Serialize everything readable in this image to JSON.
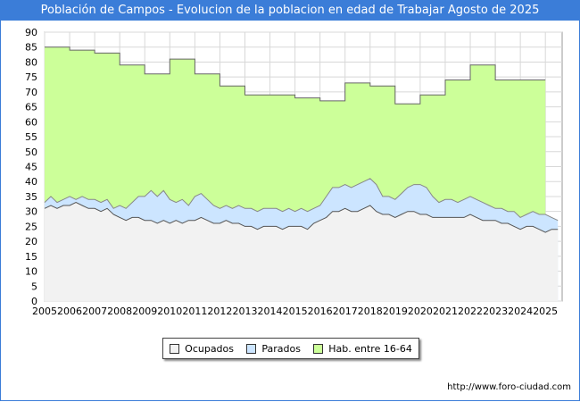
{
  "chart_data": {
    "type": "area",
    "title": "Población de Campos - Evolucion de la poblacion en edad de Trabajar Agosto de 2025",
    "xlabel": "",
    "ylabel": "",
    "ylim": [
      0,
      90
    ],
    "xlim": [
      2005,
      2025.67
    ],
    "yticks": [
      "0",
      "5",
      "10",
      "15",
      "20",
      "25",
      "30",
      "35",
      "40",
      "45",
      "50",
      "55",
      "60",
      "65",
      "70",
      "75",
      "80",
      "85",
      "90"
    ],
    "xticks": [
      "2005",
      "2006",
      "2007",
      "2008",
      "2009",
      "2010",
      "2011",
      "2012",
      "2013",
      "2014",
      "2015",
      "2016",
      "2017",
      "2018",
      "2019",
      "2020",
      "2021",
      "2022",
      "2023",
      "2024",
      "2025"
    ],
    "grid": true,
    "legend_position": "bottom",
    "series": [
      {
        "name": "Hab. entre 16-64",
        "color": "#ccff99",
        "stroke": "#666666",
        "step": true,
        "x": [
          2005,
          2006,
          2007,
          2008,
          2009,
          2010,
          2011,
          2012,
          2013,
          2014,
          2015,
          2016,
          2017,
          2018,
          2019,
          2020,
          2021,
          2022,
          2023,
          2024
        ],
        "values": [
          85,
          84,
          83,
          79,
          76,
          81,
          76,
          72,
          69,
          69,
          68,
          67,
          73,
          72,
          66,
          69,
          74,
          79,
          74,
          74
        ]
      },
      {
        "name": "Parados",
        "color": "#cce5ff",
        "stroke": "#888888",
        "x": [
          2005,
          2005.25,
          2005.5,
          2005.75,
          2006,
          2006.25,
          2006.5,
          2006.75,
          2007,
          2007.25,
          2007.5,
          2007.75,
          2008,
          2008.25,
          2008.5,
          2008.75,
          2009,
          2009.25,
          2009.5,
          2009.75,
          2010,
          2010.25,
          2010.5,
          2010.75,
          2011,
          2011.25,
          2011.5,
          2011.75,
          2012,
          2012.25,
          2012.5,
          2012.75,
          2013,
          2013.25,
          2013.5,
          2013.75,
          2014,
          2014.25,
          2014.5,
          2014.75,
          2015,
          2015.25,
          2015.5,
          2015.75,
          2016,
          2016.25,
          2016.5,
          2016.75,
          2017,
          2017.25,
          2017.5,
          2017.75,
          2018,
          2018.25,
          2018.5,
          2018.75,
          2019,
          2019.25,
          2019.5,
          2019.75,
          2020,
          2020.25,
          2020.5,
          2020.75,
          2021,
          2021.25,
          2021.5,
          2021.75,
          2022,
          2022.25,
          2022.5,
          2022.75,
          2023,
          2023.25,
          2023.5,
          2023.75,
          2024,
          2024.25,
          2024.5,
          2024.75,
          2025,
          2025.25,
          2025.5
        ],
        "values": [
          33,
          35,
          33,
          34,
          35,
          34,
          35,
          34,
          34,
          33,
          34,
          31,
          32,
          31,
          33,
          35,
          35,
          37,
          35,
          37,
          34,
          33,
          34,
          32,
          35,
          36,
          34,
          32,
          31,
          32,
          31,
          32,
          31,
          31,
          30,
          31,
          31,
          31,
          30,
          31,
          30,
          31,
          30,
          31,
          32,
          35,
          38,
          38,
          39,
          38,
          39,
          40,
          41,
          39,
          35,
          35,
          34,
          36,
          38,
          39,
          39,
          38,
          35,
          33,
          34,
          34,
          33,
          34,
          35,
          34,
          33,
          32,
          31,
          31,
          30,
          30,
          28,
          29,
          30,
          29,
          29,
          28,
          27
        ]
      },
      {
        "name": "Ocupados",
        "color": "#f2f2f2",
        "stroke": "#555555",
        "x": [
          2005,
          2005.25,
          2005.5,
          2005.75,
          2006,
          2006.25,
          2006.5,
          2006.75,
          2007,
          2007.25,
          2007.5,
          2007.75,
          2008,
          2008.25,
          2008.5,
          2008.75,
          2009,
          2009.25,
          2009.5,
          2009.75,
          2010,
          2010.25,
          2010.5,
          2010.75,
          2011,
          2011.25,
          2011.5,
          2011.75,
          2012,
          2012.25,
          2012.5,
          2012.75,
          2013,
          2013.25,
          2013.5,
          2013.75,
          2014,
          2014.25,
          2014.5,
          2014.75,
          2015,
          2015.25,
          2015.5,
          2015.75,
          2016,
          2016.25,
          2016.5,
          2016.75,
          2017,
          2017.25,
          2017.5,
          2017.75,
          2018,
          2018.25,
          2018.5,
          2018.75,
          2019,
          2019.25,
          2019.5,
          2019.75,
          2020,
          2020.25,
          2020.5,
          2020.75,
          2021,
          2021.25,
          2021.5,
          2021.75,
          2022,
          2022.25,
          2022.5,
          2022.75,
          2023,
          2023.25,
          2023.5,
          2023.75,
          2024,
          2024.25,
          2024.5,
          2024.75,
          2025,
          2025.25,
          2025.5
        ],
        "values": [
          31,
          32,
          31,
          32,
          32,
          33,
          32,
          31,
          31,
          30,
          31,
          29,
          28,
          27,
          28,
          28,
          27,
          27,
          26,
          27,
          26,
          27,
          26,
          27,
          27,
          28,
          27,
          26,
          26,
          27,
          26,
          26,
          25,
          25,
          24,
          25,
          25,
          25,
          24,
          25,
          25,
          25,
          24,
          26,
          27,
          28,
          30,
          30,
          31,
          30,
          30,
          31,
          32,
          30,
          29,
          29,
          28,
          29,
          30,
          30,
          29,
          29,
          28,
          28,
          28,
          28,
          28,
          28,
          29,
          28,
          27,
          27,
          27,
          26,
          26,
          25,
          24,
          25,
          25,
          24,
          23,
          24,
          24
        ]
      }
    ]
  },
  "legend": {
    "items": [
      {
        "label": "Ocupados",
        "color": "#f2f2f2"
      },
      {
        "label": "Parados",
        "color": "#cce5ff"
      },
      {
        "label": "Hab. entre 16-64",
        "color": "#ccff99"
      }
    ]
  },
  "source": "http://www.foro-ciudad.com"
}
